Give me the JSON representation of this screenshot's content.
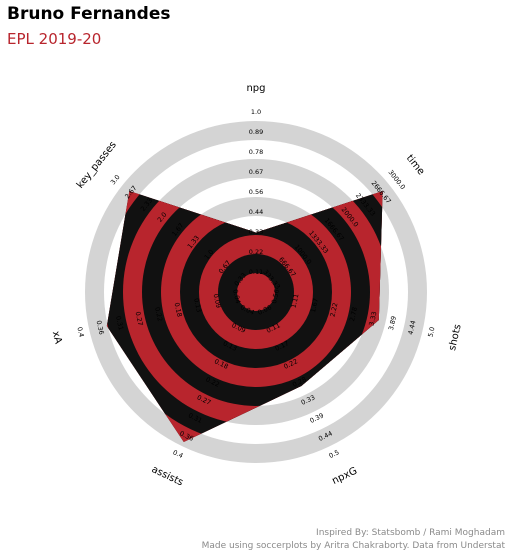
{
  "title": "Bruno Fernandes",
  "subtitle": "EPL 2019-20",
  "credits": {
    "line1": "Inspired By: Statsbomb / Rami Moghadam",
    "line2": "Made using soccerplots by Aritra Chakraborty. Data from Understat"
  },
  "colors": {
    "title": "#000000",
    "subtitle": "#b8252d",
    "player": "#b8252d",
    "rings_inner": "#111111",
    "rings_outer": "#d4d4d4",
    "credit": "#8a8a8a"
  },
  "chart_data": {
    "type": "radar",
    "params": [
      "npg",
      "time",
      "shots",
      "npxG",
      "assists",
      "xA",
      "key_passes"
    ],
    "series": [
      {
        "values": [
          0.33,
          2700,
          3.5,
          0.29,
          0.37,
          0.34,
          2.7
        ]
      }
    ],
    "ranges": [
      [
        0,
        1.0
      ],
      [
        0,
        3000
      ],
      [
        0,
        5.0
      ],
      [
        0,
        0.5
      ],
      [
        0,
        0.4
      ],
      [
        0,
        0.4
      ],
      [
        0,
        3.0
      ]
    ],
    "tick_labels": [
      [
        "0.0",
        "0.11",
        "0.22",
        "0.33",
        "0.44",
        "0.56",
        "0.67",
        "0.78",
        "0.89",
        "1.0"
      ],
      [
        "0.0",
        "333.33",
        "666.67",
        "1000.0",
        "1333.33",
        "1666.67",
        "2000.0",
        "2333.33",
        "2666.67",
        "3000.0"
      ],
      [
        "0.0",
        "0.56",
        "1.11",
        "1.67",
        "2.22",
        "2.78",
        "3.33",
        "3.89",
        "4.44",
        "5.0"
      ],
      [
        "0.0",
        "0.06",
        "0.11",
        "0.17",
        "0.22",
        "0.28",
        "0.33",
        "0.39",
        "0.44",
        "0.5"
      ],
      [
        "0.0",
        "0.04",
        "0.09",
        "0.13",
        "0.18",
        "0.22",
        "0.27",
        "0.31",
        "0.36",
        "0.4"
      ],
      [
        "0.0",
        "0.04",
        "0.09",
        "0.13",
        "0.18",
        "0.22",
        "0.27",
        "0.31",
        "0.36",
        "0.4"
      ],
      [
        "0.0",
        "0.33",
        "0.67",
        "1.0",
        "1.33",
        "1.67",
        "2.0",
        "2.33",
        "2.67",
        "3.0"
      ]
    ]
  }
}
